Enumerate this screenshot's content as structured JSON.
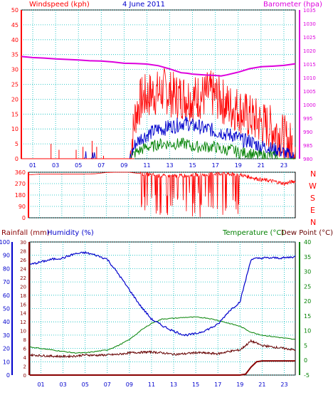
{
  "header": {
    "wind_label": "Windspeed (kph)",
    "date": "4 June 2011",
    "baro_label": "Barometer (hpa)"
  },
  "footer_labels": {
    "rain": "Rainfall (mm)",
    "humidity": "Humidity (%)",
    "temperature": "Temperature (°C)",
    "dewpoint": "Dew Point (°C)"
  },
  "colors": {
    "wind": "#ff0000",
    "gust": "#ff0000",
    "avg": "#0000cc",
    "low": "#008000",
    "baro": "#dd00dd",
    "direction": "#ff0000",
    "temperature": "#008000",
    "humidity": "#0000cc",
    "dewpoint": "#660000",
    "rain": "#880000",
    "axis_teal": "#008080",
    "grid": "#00bbbb"
  },
  "chart_data": [
    {
      "type": "line",
      "id": "wind_pressure",
      "title": "4 June 2011",
      "ylabel_left": "Windspeed (kph)",
      "ylabel_right": "Barometer (hpa)",
      "xlim": [
        0,
        24
      ],
      "x_ticks": [
        "01",
        "03",
        "05",
        "07",
        "09",
        "11",
        "13",
        "15",
        "17",
        "19",
        "21",
        "23"
      ],
      "x_tick_pos": [
        1,
        3,
        5,
        7,
        9,
        11,
        13,
        15,
        17,
        19,
        21,
        23
      ],
      "ylim_left": [
        0,
        50
      ],
      "y_ticks_left": [
        0,
        5,
        10,
        15,
        20,
        25,
        30,
        35,
        40,
        45,
        50
      ],
      "ylim_right": [
        980,
        1035
      ],
      "y_ticks_right": [
        980,
        985,
        990,
        995,
        1000,
        1005,
        1010,
        1015,
        1020,
        1025,
        1030,
        1035
      ],
      "series": [
        {
          "axis": "right",
          "x": [
            0,
            1,
            2,
            3,
            4,
            5,
            6,
            7,
            8,
            9,
            10,
            11,
            12,
            13,
            14,
            14.5,
            15,
            16,
            17,
            17.5,
            18,
            19,
            20,
            21,
            22,
            23,
            24
          ],
          "values": [
            1017.8,
            1017.4,
            1017.2,
            1016.9,
            1016.7,
            1016.5,
            1016.2,
            1016.1,
            1015.8,
            1015.3,
            1015.2,
            1015.0,
            1014.4,
            1013.2,
            1011.8,
            1011.6,
            1011.3,
            1011.0,
            1010.8,
            1010.6,
            1011.0,
            1012.0,
            1013.3,
            1014.0,
            1014.2,
            1014.5,
            1015.1
          ]
        },
        {
          "axis": "left",
          "x": [
            0,
            0.5,
            1,
            1.5,
            2,
            2.5,
            3,
            3.5,
            4,
            4.5,
            5,
            5.5,
            6,
            6.5,
            7,
            7.5,
            8,
            8.5,
            9,
            9.5,
            10,
            10.5,
            11,
            11.5,
            12,
            12.5,
            13,
            13.5,
            14,
            14.5,
            15,
            15.5,
            16,
            16.5,
            17,
            17.5,
            18,
            18.5,
            19,
            19.5,
            20,
            20.5,
            21,
            21.5,
            22,
            22.5,
            23,
            23.5,
            24
          ],
          "values": [
            0,
            0,
            0,
            0,
            0,
            0,
            0,
            0,
            0,
            0,
            0,
            0,
            0,
            0,
            0,
            0,
            0,
            0,
            0,
            0,
            15,
            20,
            21,
            22,
            22,
            23,
            22,
            21,
            21,
            21,
            20,
            21,
            21,
            22,
            21,
            20,
            18,
            17,
            17,
            15,
            14,
            13,
            12,
            11,
            10,
            9,
            7,
            5,
            4
          ]
        },
        {
          "axis": "left",
          "x": [
            0,
            0.5,
            1,
            1.5,
            2,
            2.5,
            3,
            3.5,
            4,
            4.5,
            5,
            5.5,
            6,
            6.5,
            7,
            7.5,
            8,
            8.5,
            9,
            9.5,
            10,
            10.5,
            11,
            11.5,
            12,
            12.5,
            13,
            13.5,
            14,
            14.5,
            15,
            15.5,
            16,
            16.5,
            17,
            17.5,
            18,
            18.5,
            19,
            19.5,
            20,
            20.5,
            21,
            21.5,
            22,
            22.5,
            23,
            23.5,
            24
          ],
          "values": [
            0,
            0,
            0,
            0,
            0,
            0,
            0,
            0,
            0,
            0,
            0,
            0,
            1,
            0,
            0,
            0,
            0,
            0,
            0,
            0,
            5,
            7,
            8,
            9,
            10,
            10,
            11,
            11,
            12,
            12,
            11,
            11,
            10,
            10,
            9,
            9,
            8,
            8,
            7,
            6,
            6,
            5,
            4,
            4,
            3,
            3,
            2,
            1,
            0
          ]
        },
        {
          "axis": "left",
          "x": [
            0,
            0.5,
            1,
            1.5,
            2,
            2.5,
            3,
            3.5,
            4,
            4.5,
            5,
            5.5,
            6,
            6.5,
            7,
            7.5,
            8,
            8.5,
            9,
            9.5,
            10,
            10.5,
            11,
            11.5,
            12,
            12.5,
            13,
            13.5,
            14,
            14.5,
            15,
            15.5,
            16,
            16.5,
            17,
            17.5,
            18,
            18.5,
            19,
            19.5,
            20,
            20.5,
            21,
            21.5,
            22,
            22.5,
            23,
            23.5,
            24
          ],
          "values": [
            0,
            0,
            0,
            0,
            0,
            0,
            0,
            0,
            0,
            0,
            0,
            0,
            0,
            0,
            0,
            0,
            0,
            0,
            0,
            0,
            2,
            3,
            4,
            4,
            5,
            5,
            5,
            5,
            5,
            5,
            4,
            4,
            4,
            4,
            4,
            3,
            3,
            3,
            2,
            2,
            2,
            1,
            1,
            1,
            1,
            0,
            0,
            0,
            0
          ]
        }
      ]
    },
    {
      "type": "line",
      "id": "direction",
      "xlim": [
        0,
        24
      ],
      "x_ticks": [
        "01",
        "03",
        "05",
        "07",
        "09",
        "11",
        "13",
        "15",
        "17",
        "19",
        "21",
        "23"
      ],
      "x_tick_pos": [
        1,
        3,
        5,
        7,
        9,
        11,
        13,
        15,
        17,
        19,
        21,
        23
      ],
      "ylim": [
        0,
        360
      ],
      "y_ticks": [
        0,
        90,
        180,
        270,
        360
      ],
      "compass_labels": [
        "N",
        "W",
        "S",
        "E",
        "N"
      ],
      "series": [
        {
          "name": "direction",
          "x": [
            0,
            1,
            2,
            3,
            4,
            5,
            6,
            7,
            8,
            9,
            10,
            11,
            12,
            13,
            14,
            15,
            16,
            17,
            18,
            19,
            20,
            21,
            22,
            23,
            24
          ],
          "values": [
            340,
            345,
            345,
            345,
            345,
            345,
            348,
            358,
            360,
            360,
            350,
            340,
            330,
            330,
            335,
            340,
            340,
            350,
            345,
            340,
            320,
            300,
            290,
            270,
            290
          ]
        }
      ]
    },
    {
      "type": "line",
      "id": "temp_humidity_rain",
      "xlim": [
        0,
        24
      ],
      "x_ticks": [
        "01",
        "03",
        "05",
        "07",
        "09",
        "11",
        "13",
        "15",
        "17",
        "19",
        "21",
        "23"
      ],
      "x_tick_pos": [
        1,
        3,
        5,
        7,
        9,
        11,
        13,
        15,
        17,
        19,
        21,
        23
      ],
      "ylabel_left_outer": "Humidity (%)",
      "ylim_humidity": [
        0,
        100
      ],
      "y_ticks_humidity": [
        0,
        10,
        20,
        30,
        40,
        50,
        60,
        70,
        80,
        90,
        100
      ],
      "ylabel_left_inner": "Rainfall (mm)",
      "ylim_rain": [
        0,
        30
      ],
      "y_ticks_rain": [
        0,
        2,
        4,
        6,
        8,
        10,
        12,
        14,
        16,
        18,
        20,
        22,
        24,
        26,
        28,
        30
      ],
      "ylabel_right": "Temperature (°C)",
      "ylim_temp": [
        -5,
        40
      ],
      "y_ticks_temp": [
        -5,
        0,
        5,
        10,
        15,
        20,
        25,
        30,
        35,
        40
      ],
      "series": [
        {
          "name": "Temperature",
          "x": [
            0,
            1,
            2,
            3,
            4,
            5,
            6,
            7,
            8,
            9,
            10,
            11,
            12,
            13,
            14,
            15,
            16,
            17,
            18,
            19,
            20,
            21,
            22,
            23,
            24
          ],
          "values": [
            4.5,
            4.0,
            3.5,
            3.0,
            2.5,
            2.5,
            3.0,
            3.5,
            5.0,
            7.0,
            10.0,
            12.5,
            14.0,
            14.2,
            14.5,
            14.6,
            14.3,
            13.5,
            12.5,
            11.5,
            9.5,
            8.5,
            8.0,
            7.5,
            7.0
          ]
        },
        {
          "name": "Dew Point",
          "x": [
            0,
            1,
            2,
            3,
            4,
            5,
            6,
            7,
            8,
            9,
            10,
            11,
            12,
            13,
            14,
            15,
            16,
            17,
            18,
            19,
            20,
            21,
            22,
            23,
            24
          ],
          "values": [
            1.8,
            1.6,
            1.4,
            1.3,
            1.4,
            1.8,
            1.7,
            1.8,
            2.0,
            2.5,
            2.7,
            2.8,
            2.5,
            2.0,
            2.2,
            2.6,
            2.4,
            2.2,
            3.0,
            3.5,
            6.5,
            5.0,
            4.5,
            4.0,
            3.5
          ]
        },
        {
          "name": "Humidity",
          "x": [
            0,
            1,
            2,
            3,
            4,
            5,
            6,
            7,
            8,
            9,
            10,
            11,
            12,
            13,
            14,
            15,
            16,
            17,
            18,
            19,
            20,
            21,
            22,
            23,
            24
          ],
          "values": [
            83,
            85,
            87,
            88,
            91,
            92,
            90,
            87,
            76,
            64,
            52,
            42,
            37,
            33,
            30,
            31,
            34,
            38,
            48,
            55,
            87,
            88,
            88,
            88,
            89
          ]
        },
        {
          "name": "Rainfall",
          "x": [
            0,
            19,
            19.5,
            20,
            20.5,
            21,
            22,
            23,
            24
          ],
          "values": [
            0,
            0,
            0.2,
            1.8,
            3.0,
            3.2,
            3.2,
            3.2,
            3.2
          ]
        }
      ]
    }
  ]
}
